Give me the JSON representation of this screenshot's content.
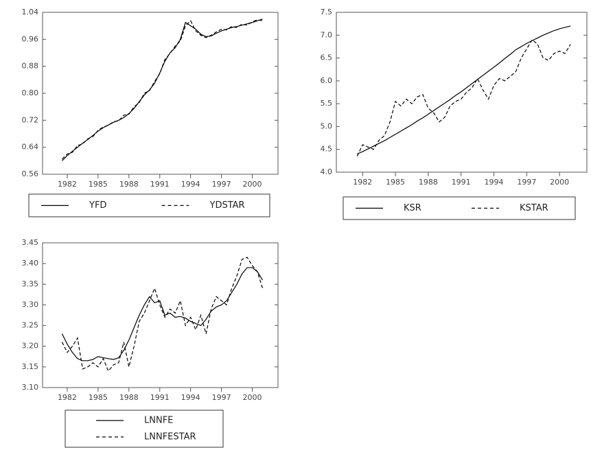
{
  "chart_data": [
    {
      "type": "line",
      "x": [
        1981.5,
        1982,
        1982.5,
        1983,
        1983.5,
        1984,
        1984.5,
        1985,
        1985.5,
        1986,
        1986.5,
        1987,
        1987.5,
        1988,
        1988.5,
        1989,
        1989.5,
        1990,
        1990.5,
        1991,
        1991.5,
        1992,
        1992.5,
        1993,
        1993.5,
        1994,
        1994.5,
        1995,
        1995.5,
        1996,
        1996.5,
        1997,
        1997.5,
        1998,
        1998.5,
        1999,
        1999.5,
        2000,
        2000.5,
        2001
      ],
      "xlim": [
        1979.6,
        2002.5
      ],
      "xticks": [
        1982,
        1985,
        1988,
        1991,
        1994,
        1997,
        2000
      ],
      "ylim": [
        0.56,
        1.04
      ],
      "yticks": [
        0.56,
        0.64,
        0.72,
        {
          "value": 0.8,
          "label": "0.80"
        },
        0.88,
        0.96,
        1.04
      ],
      "legend": "horizontal",
      "series": [
        {
          "name": "YFD",
          "color": "#000000",
          "style": "solid",
          "values": [
            0.6,
            0.615,
            0.628,
            0.64,
            0.652,
            0.663,
            0.675,
            0.688,
            0.698,
            0.706,
            0.714,
            0.72,
            0.728,
            0.74,
            0.755,
            0.775,
            0.795,
            0.81,
            0.83,
            0.86,
            0.895,
            0.92,
            0.935,
            0.96,
            1.01,
            1.0,
            0.99,
            0.975,
            0.968,
            0.97,
            0.978,
            0.985,
            0.99,
            0.995,
            0.998,
            1.002,
            1.006,
            1.01,
            1.015,
            1.02
          ]
        },
        {
          "name": "YDSTAR",
          "color": "#000000",
          "style": "dashed",
          "values": [
            0.605,
            0.62,
            0.625,
            0.645,
            0.65,
            0.665,
            0.672,
            0.69,
            0.7,
            0.705,
            0.716,
            0.718,
            0.735,
            0.738,
            0.76,
            0.772,
            0.8,
            0.808,
            0.835,
            0.858,
            0.9,
            0.918,
            0.94,
            0.955,
            1.0,
            1.015,
            0.985,
            0.972,
            0.965,
            0.972,
            0.982,
            0.99,
            0.988,
            0.998,
            0.995,
            1.005,
            1.002,
            1.012,
            1.018,
            1.015
          ]
        }
      ]
    },
    {
      "type": "line",
      "x": [
        1981.5,
        1982,
        1982.5,
        1983,
        1983.5,
        1984,
        1984.5,
        1985,
        1985.5,
        1986,
        1986.5,
        1987,
        1987.5,
        1988,
        1988.5,
        1989,
        1989.5,
        1990,
        1990.5,
        1991,
        1991.5,
        1992,
        1992.5,
        1993,
        1993.5,
        1994,
        1994.5,
        1995,
        1995.5,
        1996,
        1996.5,
        1997,
        1997.5,
        1998,
        1998.5,
        1999,
        1999.5,
        2000,
        2000.5,
        2001
      ],
      "xlim": [
        1979.6,
        2002.5
      ],
      "xticks": [
        1982,
        1985,
        1988,
        1991,
        1994,
        1997,
        2000
      ],
      "ylim": [
        4,
        7.5
      ],
      "yticks": [
        {
          "value": 4,
          "label": "4.0"
        },
        4.5,
        {
          "value": 5,
          "label": "5.0"
        },
        5.5,
        {
          "value": 6,
          "label": "6.0"
        },
        6.5,
        {
          "value": 7,
          "label": "7.0"
        },
        7.5
      ],
      "legend": "horizontal",
      "series": [
        {
          "name": "KSR",
          "color": "#000000",
          "style": "solid",
          "values": [
            4.4,
            4.45,
            4.51,
            4.57,
            4.63,
            4.69,
            4.76,
            4.83,
            4.9,
            4.97,
            5.04,
            5.12,
            5.19,
            5.27,
            5.35,
            5.43,
            5.51,
            5.59,
            5.68,
            5.76,
            5.85,
            5.94,
            6.03,
            6.12,
            6.21,
            6.3,
            6.39,
            6.49,
            6.58,
            6.68,
            6.75,
            6.82,
            6.88,
            6.94,
            7.0,
            7.05,
            7.1,
            7.14,
            7.17,
            7.2
          ]
        },
        {
          "name": "KSTAR",
          "color": "#000000",
          "style": "dashed",
          "values": [
            4.35,
            4.6,
            4.55,
            4.5,
            4.7,
            4.8,
            5.1,
            5.55,
            5.45,
            5.6,
            5.5,
            5.65,
            5.7,
            5.4,
            5.3,
            5.1,
            5.2,
            5.45,
            5.55,
            5.6,
            5.75,
            5.85,
            6.05,
            5.8,
            5.6,
            5.9,
            6.05,
            6.0,
            6.1,
            6.2,
            6.5,
            6.7,
            6.9,
            6.8,
            6.5,
            6.45,
            6.6,
            6.65,
            6.6,
            6.8
          ]
        }
      ]
    },
    {
      "type": "line",
      "x": [
        1981.5,
        1982,
        1982.5,
        1983,
        1983.5,
        1984,
        1984.5,
        1985,
        1985.5,
        1986,
        1986.5,
        1987,
        1987.5,
        1988,
        1988.5,
        1989,
        1989.5,
        1990,
        1990.5,
        1991,
        1991.5,
        1992,
        1992.5,
        1993,
        1993.5,
        1994,
        1994.5,
        1995,
        1995.5,
        1996,
        1996.5,
        1997,
        1997.5,
        1998,
        1998.5,
        1999,
        1999.5,
        2000,
        2000.5,
        2001
      ],
      "xlim": [
        1979.6,
        2002.5
      ],
      "xticks": [
        1982,
        1985,
        1988,
        1991,
        1994,
        1997,
        2000
      ],
      "ylim": [
        3.1,
        3.45
      ],
      "yticks": [
        {
          "value": 3.1,
          "label": "3.10"
        },
        3.15,
        {
          "value": 3.2,
          "label": "3.20"
        },
        3.25,
        {
          "value": 3.3,
          "label": "3.30"
        },
        3.35,
        {
          "value": 3.4,
          "label": "3.40"
        },
        3.45
      ],
      "legend": "vertical",
      "series": [
        {
          "name": "LNNFE",
          "color": "#000000",
          "style": "solid",
          "values": [
            3.23,
            3.205,
            3.185,
            3.17,
            3.165,
            3.165,
            3.168,
            3.175,
            3.172,
            3.17,
            3.168,
            3.172,
            3.19,
            3.215,
            3.245,
            3.275,
            3.3,
            3.32,
            3.305,
            3.31,
            3.275,
            3.28,
            3.27,
            3.272,
            3.268,
            3.26,
            3.255,
            3.25,
            3.265,
            3.285,
            3.295,
            3.3,
            3.31,
            3.33,
            3.35,
            3.375,
            3.39,
            3.39,
            3.38,
            3.36
          ]
        },
        {
          "name": "LNNFESTAR",
          "color": "#000000",
          "style": "dashed",
          "values": [
            3.21,
            3.185,
            3.2,
            3.22,
            3.145,
            3.15,
            3.16,
            3.15,
            3.17,
            3.14,
            3.155,
            3.16,
            3.21,
            3.15,
            3.2,
            3.26,
            3.28,
            3.31,
            3.34,
            3.3,
            3.27,
            3.29,
            3.28,
            3.31,
            3.25,
            3.27,
            3.24,
            3.275,
            3.23,
            3.29,
            3.32,
            3.31,
            3.3,
            3.34,
            3.37,
            3.41,
            3.415,
            3.395,
            3.38,
            3.34
          ]
        }
      ]
    }
  ]
}
